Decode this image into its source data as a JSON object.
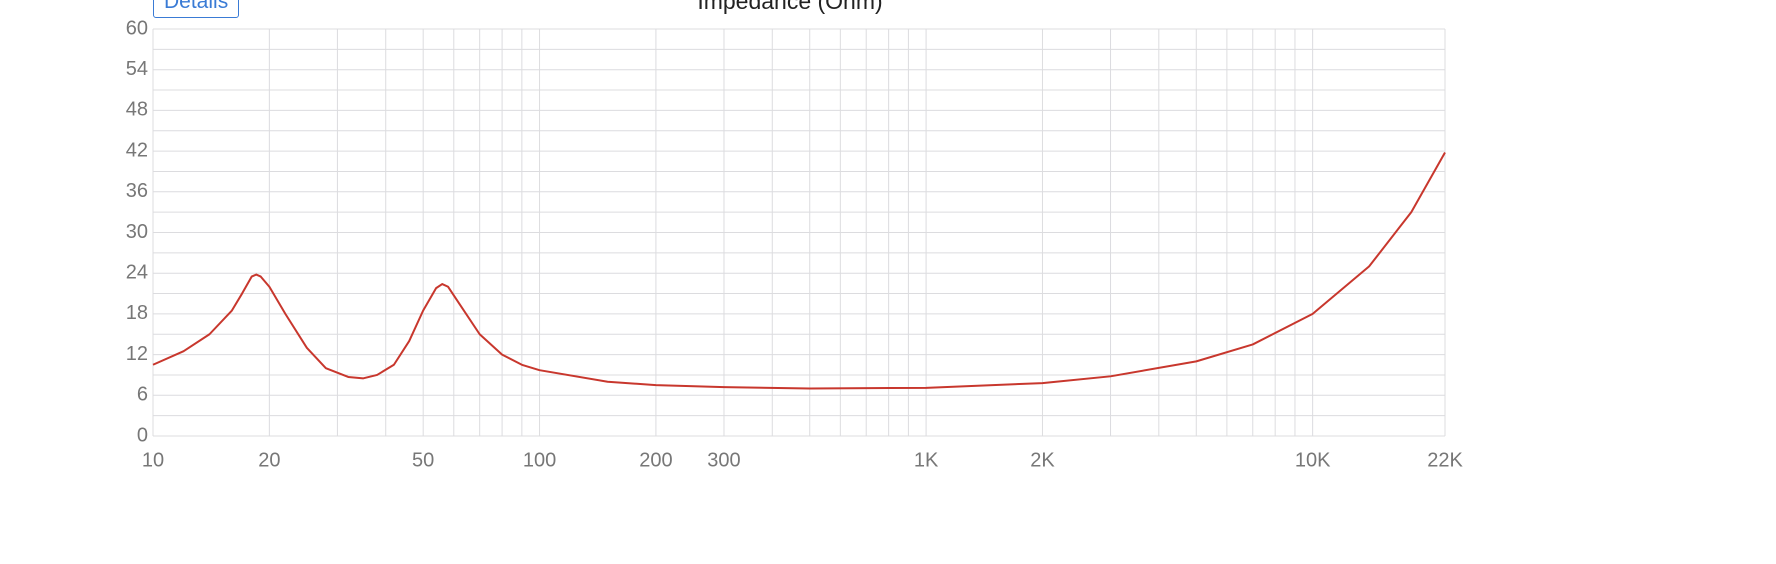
{
  "button": "Details",
  "chart_data": {
    "type": "line",
    "title": "Impedance (Ohm)",
    "xscale": "log",
    "grid": true,
    "xlim": [
      10,
      22000
    ],
    "ylim": [
      0,
      60
    ],
    "xticks": [
      10,
      20,
      50,
      100,
      200,
      300,
      {
        "value": 1000,
        "label": "1K"
      },
      {
        "value": 2000,
        "label": "2K"
      },
      {
        "value": 10000,
        "label": "10K"
      },
      {
        "value": 22000,
        "label": "22K"
      }
    ],
    "minor_xticks": [
      30,
      40,
      60,
      70,
      80,
      90,
      400,
      500,
      600,
      700,
      800,
      900,
      3000,
      4000,
      5000,
      6000,
      7000,
      8000,
      9000
    ],
    "yticks": [
      0,
      6,
      12,
      18,
      24,
      30,
      36,
      42,
      48,
      54,
      60
    ],
    "minor_yticks": [
      3,
      9,
      15,
      21,
      27,
      33,
      39,
      45,
      51,
      57
    ],
    "x": [
      10,
      12,
      14,
      16,
      17,
      18,
      18.5,
      19,
      20,
      22,
      25,
      28,
      32,
      35,
      38,
      42,
      46,
      50,
      54,
      56,
      58,
      62,
      70,
      80,
      90,
      100,
      150,
      200,
      300,
      500,
      1000,
      2000,
      3000,
      5000,
      7000,
      10000,
      14000,
      18000,
      22000
    ],
    "series": [
      {
        "name": "Impedance",
        "color": "#c8372d",
        "values": [
          10.5,
          12.5,
          15,
          18.5,
          21,
          23.5,
          23.8,
          23.5,
          22,
          18,
          13,
          10,
          8.7,
          8.5,
          9,
          10.5,
          14,
          18.5,
          21.8,
          22.4,
          22,
          19.5,
          15,
          12,
          10.5,
          9.7,
          8,
          7.5,
          7.2,
          7.0,
          7.1,
          7.8,
          8.8,
          11,
          13.5,
          18,
          25,
          33,
          41.8
        ]
      }
    ]
  }
}
